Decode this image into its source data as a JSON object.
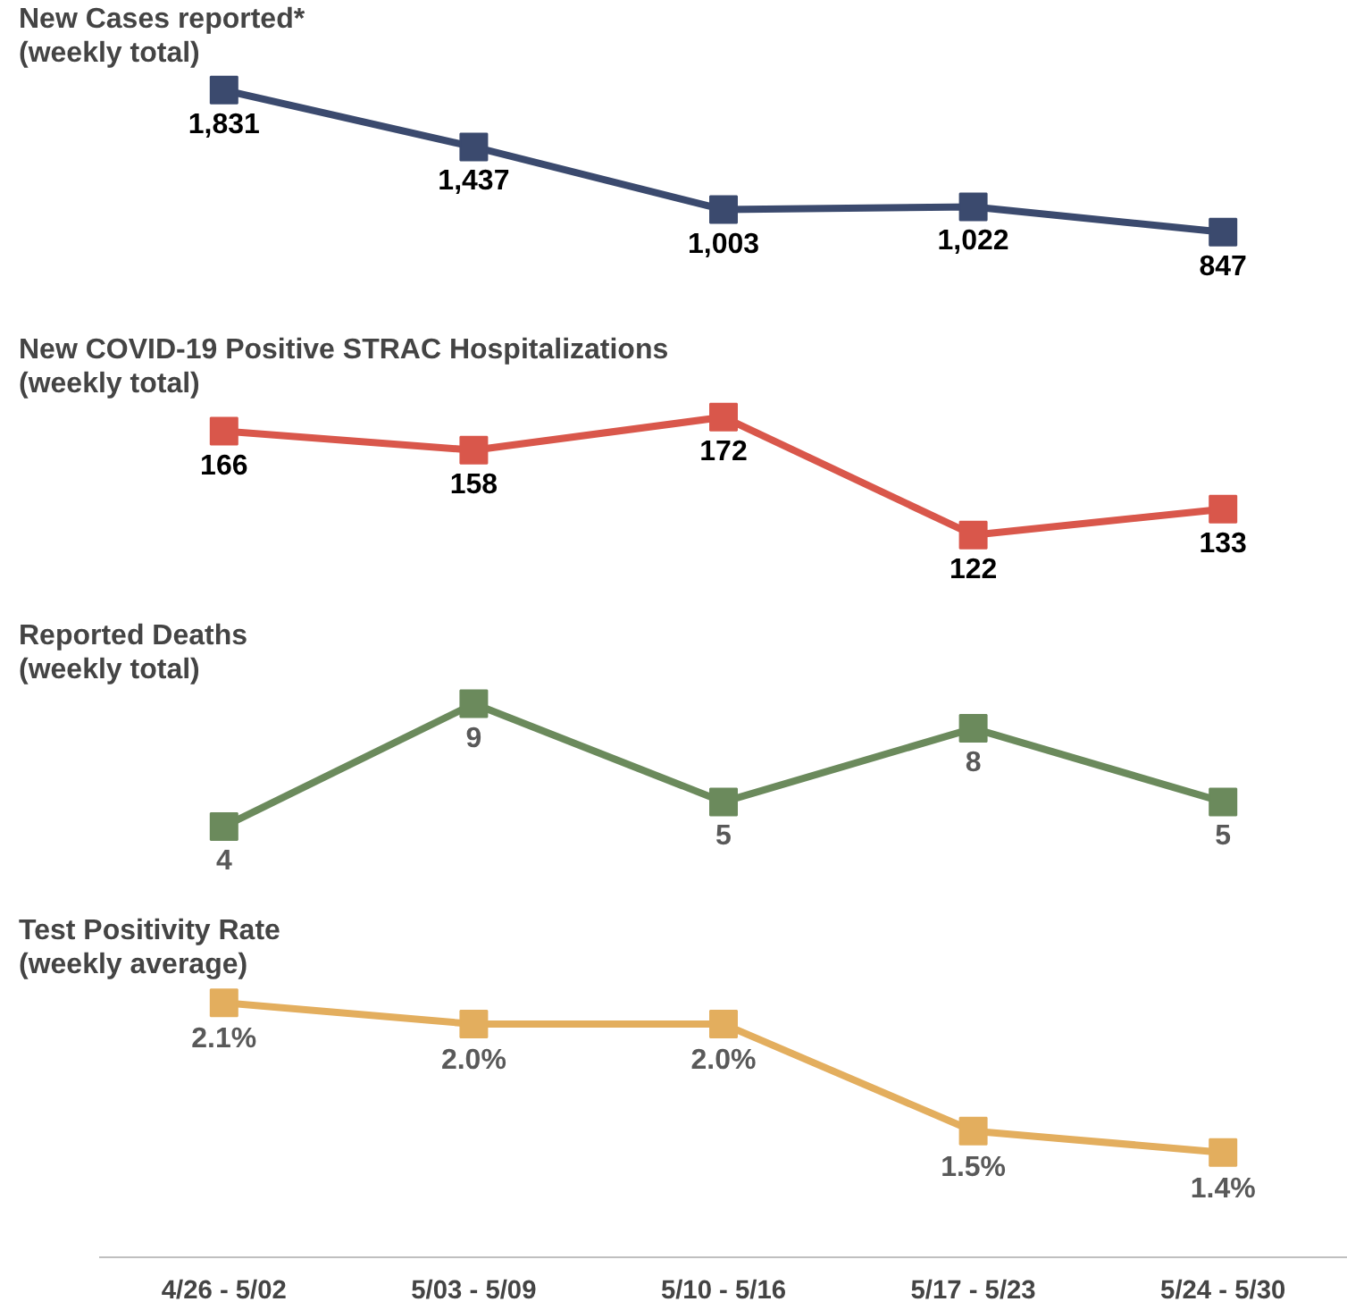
{
  "chart_data": [
    {
      "type": "line",
      "title": "New Cases reported*",
      "subtitle": "(weekly total)",
      "categories": [
        null,
        null,
        null,
        null,
        null
      ],
      "series": [
        {
          "color": "#3b4a6e",
          "values": [
            1831,
            1437,
            1003,
            1022,
            847
          ],
          "value_labels": [
            "1,831",
            "1,437",
            "1,003",
            "1,022",
            "847"
          ]
        }
      ],
      "marker": "square",
      "tick_labels": false
    },
    {
      "type": "line",
      "title": "New COVID-19 Positive STRAC Hospitalizations",
      "subtitle": "(weekly total)",
      "categories": [
        null,
        null,
        null,
        null,
        null
      ],
      "series": [
        {
          "color": "#d9574b",
          "values": [
            166,
            158,
            172,
            122,
            133
          ],
          "value_labels": [
            "166",
            "158",
            "172",
            "122",
            "133"
          ]
        }
      ],
      "marker": "square",
      "tick_labels": false
    },
    {
      "type": "line",
      "title": "Reported Deaths",
      "subtitle": "(weekly total)",
      "categories": [
        null,
        null,
        null,
        null,
        null
      ],
      "series": [
        {
          "color": "#6b8a5c",
          "values": [
            4,
            9,
            5,
            8,
            5
          ],
          "value_labels": [
            "4",
            "9",
            "5",
            "8",
            "5"
          ]
        }
      ],
      "marker": "square",
      "tick_labels": false
    },
    {
      "type": "line",
      "title": "Test Positivity Rate",
      "subtitle": "(weekly average)",
      "categories": [
        "4/26 - 5/02",
        "5/03 - 5/09",
        "5/10 - 5/16",
        "5/17 - 5/23",
        "5/24 - 5/30"
      ],
      "series": [
        {
          "color": "#e3ae5e",
          "values": [
            2.1,
            2.0,
            2.0,
            1.5,
            1.4
          ],
          "value_labels": [
            "2.1%",
            "2.0%",
            "2.0%",
            "1.5%",
            "1.4%"
          ]
        }
      ],
      "marker": "square",
      "tick_labels": "x"
    }
  ]
}
